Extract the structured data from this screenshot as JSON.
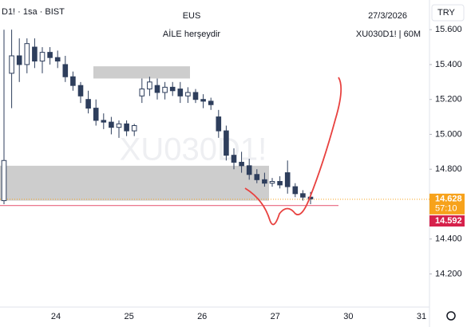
{
  "chart_data": {
    "type": "candlestick",
    "symbol": "D1! · 1sa · BIST",
    "title": "EUS",
    "subtitle": "AİLE herşeydir",
    "date": "27/3/2026",
    "ticker": "XU030D1! | 60M",
    "currency": "TRY",
    "watermark": "XU030D1!",
    "open": [
      14.62,
      15.35,
      15.45,
      15.4,
      15.5,
      15.42,
      15.47,
      15.44,
      15.4,
      15.33,
      15.28,
      15.2,
      15.15,
      15.08,
      15.07,
      15.04,
      15.06,
      15.02,
      15.22,
      15.26,
      15.28,
      15.24,
      15.27,
      15.26,
      15.22,
      15.24,
      15.2,
      15.19,
      15.1,
      15.02,
      14.88,
      14.84,
      14.82,
      14.77,
      14.74,
      14.72,
      14.73,
      14.78,
      14.7,
      14.66,
      14.64
    ],
    "high": [
      15.6,
      15.6,
      15.55,
      15.55,
      15.55,
      15.5,
      15.5,
      15.48,
      15.45,
      15.36,
      15.3,
      15.25,
      15.2,
      15.12,
      15.1,
      15.08,
      15.08,
      15.06,
      15.32,
      15.33,
      15.32,
      15.3,
      15.3,
      15.3,
      15.27,
      15.26,
      15.23,
      15.21,
      15.14,
      15.05,
      14.92,
      14.9,
      14.86,
      14.8,
      14.78,
      14.75,
      14.76,
      14.85,
      14.72,
      14.68,
      14.67
    ],
    "low": [
      14.6,
      15.15,
      15.3,
      15.35,
      15.38,
      15.35,
      15.4,
      15.38,
      15.3,
      15.25,
      15.18,
      15.12,
      15.05,
      15.03,
      15.0,
      14.98,
      14.99,
      14.99,
      15.18,
      15.22,
      15.2,
      15.2,
      15.22,
      15.18,
      15.18,
      15.18,
      15.15,
      15.14,
      14.98,
      14.85,
      14.8,
      14.78,
      14.74,
      14.72,
      14.7,
      14.7,
      14.69,
      14.66,
      14.64,
      14.62,
      14.6
    ],
    "close": [
      14.85,
      15.45,
      15.4,
      15.52,
      15.42,
      15.47,
      15.44,
      15.42,
      15.33,
      15.28,
      15.22,
      15.15,
      15.08,
      15.07,
      15.04,
      15.06,
      15.02,
      15.05,
      15.26,
      15.3,
      15.24,
      15.27,
      15.25,
      15.22,
      15.24,
      15.2,
      15.19,
      15.17,
      15.02,
      14.88,
      14.84,
      14.82,
      14.77,
      14.74,
      14.72,
      14.73,
      14.71,
      14.7,
      14.66,
      14.64,
      14.63
    ],
    "up_color": "#ffffff",
    "down_color": "#2e3e5c",
    "wick_color": "#2e3e5c",
    "ylim": [
      14.01,
      15.77
    ],
    "yticks": [
      {
        "value": 15.6,
        "label": "15.600"
      },
      {
        "value": 15.4,
        "label": "15.400"
      },
      {
        "value": 15.2,
        "label": "15.200"
      },
      {
        "value": 15,
        "label": "15.000"
      },
      {
        "value": 14.8,
        "label": "14.800"
      },
      {
        "value": 14.4,
        "label": "14.400"
      },
      {
        "value": 14.2,
        "label": "14.200"
      }
    ],
    "xticks": [
      "24",
      "25",
      "26",
      "27",
      "30",
      "31"
    ],
    "last_price": 14.628,
    "countdown": "57:10",
    "level": 14.592,
    "zones": [
      {
        "top": 15.39,
        "bottom": 15.32
      },
      {
        "top": 14.82,
        "bottom": 14.62
      }
    ]
  }
}
